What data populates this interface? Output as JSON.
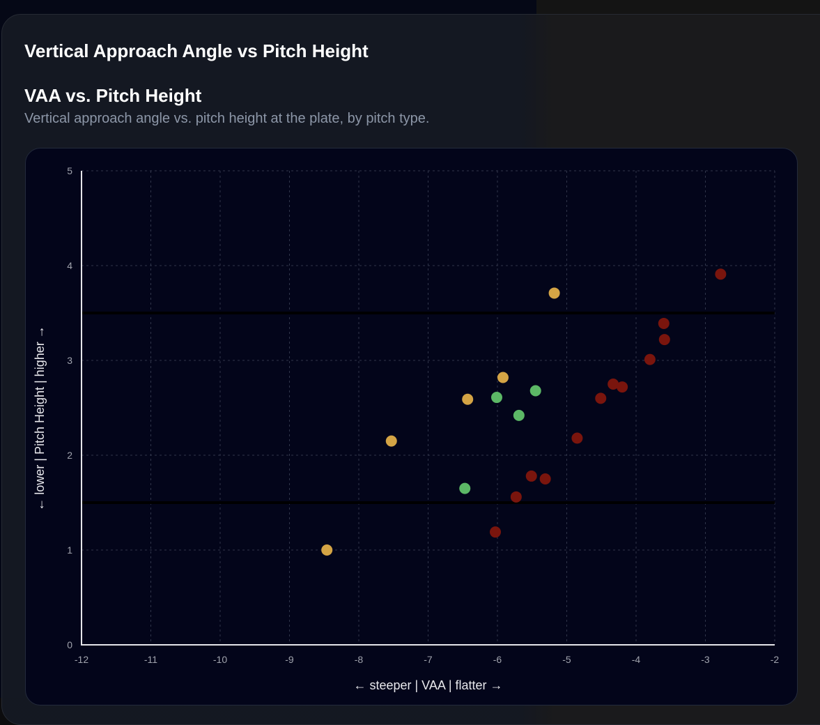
{
  "header": {
    "title": "Vertical Approach Angle vs Pitch Height"
  },
  "section": {
    "title": "VAA vs. Pitch Height",
    "subtitle": "Vertical approach angle vs. pitch height at the plate, by pitch type."
  },
  "colors": {
    "red": "#7a150d",
    "gold": "#d4a445",
    "green": "#5cb866",
    "grid": "#30354a",
    "axis": "#e6e6ea",
    "tick_text": "#a0a3ad",
    "label_text": "#e8e8ec",
    "strike_zone_line": "#000000"
  },
  "chart_data": {
    "type": "scatter",
    "title": "VAA vs. Pitch Height",
    "xlabel": "← steeper | VAA | flatter →",
    "ylabel": "← lower | Pitch Height | higher →",
    "xlim": [
      -12,
      -2
    ],
    "ylim": [
      0,
      5
    ],
    "xticks": [
      -12,
      -11,
      -10,
      -9,
      -8,
      -7,
      -6,
      -5,
      -4,
      -3,
      -2
    ],
    "yticks": [
      0,
      1,
      2,
      3,
      4,
      5
    ],
    "grid": true,
    "reference_lines_y": [
      1.5,
      3.5
    ],
    "series": [
      {
        "name": "red",
        "color": "#7a150d",
        "points": [
          {
            "x": -2.78,
            "y": 3.91
          },
          {
            "x": -3.6,
            "y": 3.39
          },
          {
            "x": -3.59,
            "y": 3.22
          },
          {
            "x": -3.8,
            "y": 3.01
          },
          {
            "x": -4.33,
            "y": 2.75
          },
          {
            "x": -4.2,
            "y": 2.72
          },
          {
            "x": -4.51,
            "y": 2.6
          },
          {
            "x": -4.85,
            "y": 2.18
          },
          {
            "x": -5.51,
            "y": 1.78
          },
          {
            "x": -5.31,
            "y": 1.75
          },
          {
            "x": -5.73,
            "y": 1.56
          },
          {
            "x": -6.03,
            "y": 1.19
          }
        ]
      },
      {
        "name": "gold",
        "color": "#d4a445",
        "points": [
          {
            "x": -5.18,
            "y": 3.71
          },
          {
            "x": -5.92,
            "y": 2.82
          },
          {
            "x": -6.43,
            "y": 2.59
          },
          {
            "x": -7.53,
            "y": 2.15
          },
          {
            "x": -8.46,
            "y": 1.0
          }
        ]
      },
      {
        "name": "green",
        "color": "#5cb866",
        "points": [
          {
            "x": -5.45,
            "y": 2.68
          },
          {
            "x": -6.01,
            "y": 2.61
          },
          {
            "x": -5.69,
            "y": 2.42
          },
          {
            "x": -6.47,
            "y": 1.65
          }
        ]
      }
    ]
  }
}
